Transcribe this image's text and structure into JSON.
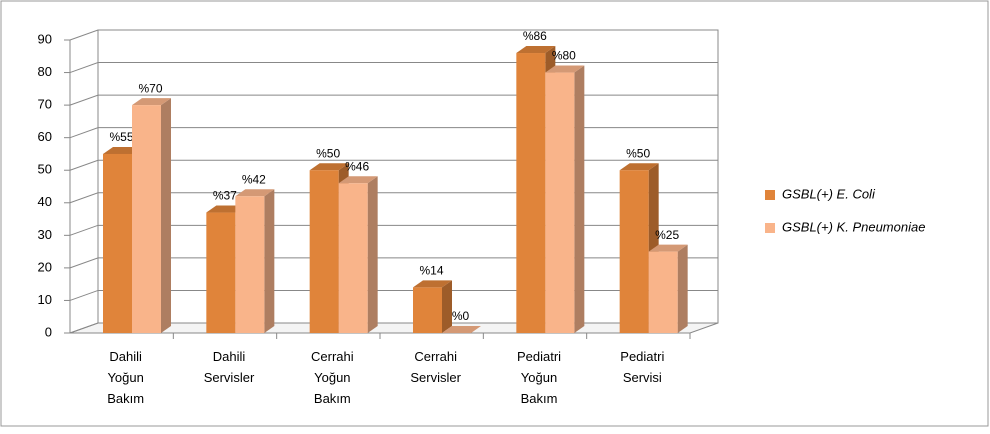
{
  "chart_data": {
    "type": "bar3d",
    "categories": [
      "Dahili Yoğun Bakım",
      "Dahili Servisler",
      "Cerrahi Yoğun Bakım",
      "Cerrahi Servisler",
      "Pediatri Yoğun Bakım",
      "Pediatri Servisi"
    ],
    "series": [
      {
        "name": "GSBL(+) E. Coli",
        "color": "#e0843a",
        "values": [
          55,
          37,
          50,
          14,
          86,
          50
        ],
        "value_labels": [
          "%55",
          "%37",
          "%50",
          "%14",
          "%86",
          "%50"
        ]
      },
      {
        "name": "GSBL(+) K. Pneumoniae",
        "color": "#f9b48a",
        "values": [
          70,
          42,
          46,
          0,
          80,
          25
        ],
        "value_labels": [
          "%70",
          "%42",
          "%46",
          "%0",
          "%80",
          "%25"
        ]
      }
    ],
    "ylim": [
      0,
      90
    ],
    "yticks": [
      0,
      10,
      20,
      30,
      40,
      50,
      60,
      70,
      80,
      90
    ],
    "grid": true,
    "legend": "right"
  }
}
